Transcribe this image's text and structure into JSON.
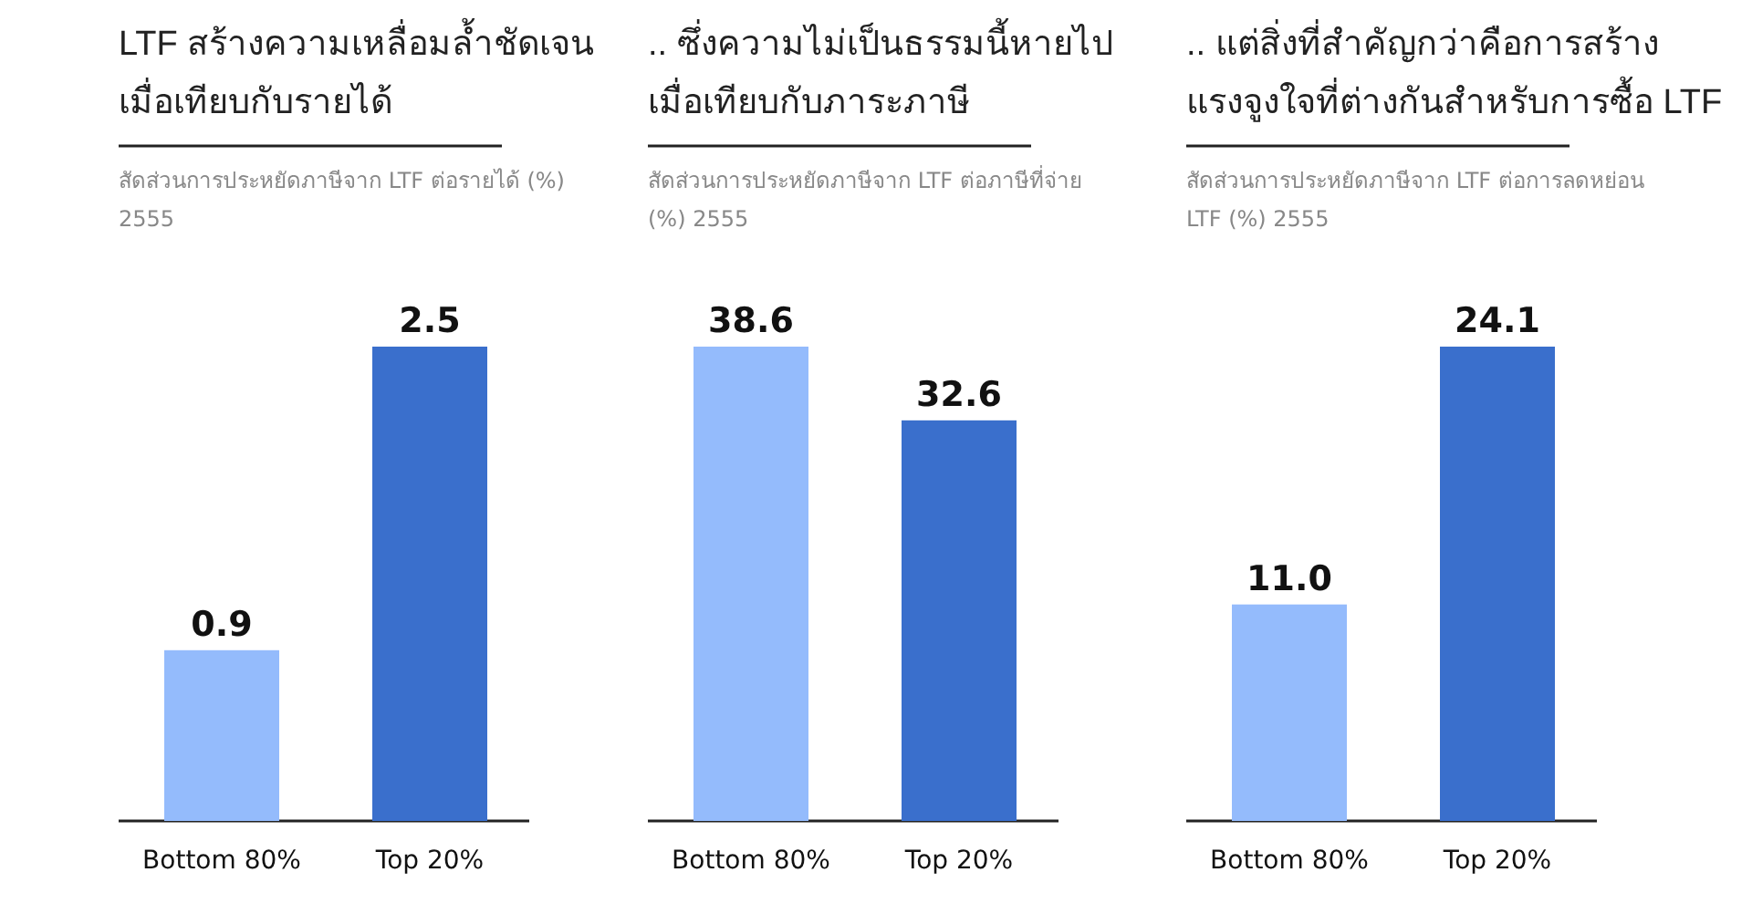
{
  "chart_data": [
    {
      "type": "bar",
      "title": "LTF สร้างความเหลื่อมล้ำชัดเจน\nเมื่อเทียบกับรายได้",
      "subtitle": "สัดส่วนการประหยัดภาษีจาก  LTF ต่อรายได้ (%) 2555",
      "categories": [
        "Bottom 80%",
        "Top 20%"
      ],
      "values": [
        0.9,
        2.5
      ],
      "colors": [
        "#94bbfc",
        "#3a6fcc"
      ],
      "data_labels": true,
      "value_labels": [
        "0.9",
        "2.5"
      ]
    },
    {
      "type": "bar",
      "title": ".. ซึ่งความไม่เป็นธรรมนี้หายไป\nเมื่อเทียบกับภาระภาษี",
      "subtitle": "สัดส่วนการประหยัดภาษีจาก  LTF ต่อภาษีที่จ่าย (%) 2555",
      "categories": [
        "Bottom 80%",
        "Top 20%"
      ],
      "values": [
        38.6,
        32.6
      ],
      "colors": [
        "#94bbfc",
        "#3a6fcc"
      ],
      "data_labels": true,
      "value_labels": [
        "38.6",
        "32.6"
      ]
    },
    {
      "type": "bar",
      "title": ".. แต่สิ่งที่สำคัญกว่าคือการสร้าง\nแรงจูงใจที่ต่างกันสำหรับการซื้อ LTF",
      "subtitle": "สัดส่วนการประหยัดภาษีจาก LTF ต่อการลดหย่อน LTF (%) 2555",
      "categories": [
        "Bottom 80%",
        "Top 20%"
      ],
      "values": [
        11.0,
        24.1
      ],
      "colors": [
        "#94bbfc",
        "#3a6fcc"
      ],
      "data_labels": true,
      "value_labels": [
        "11.0",
        "24.1"
      ]
    }
  ]
}
